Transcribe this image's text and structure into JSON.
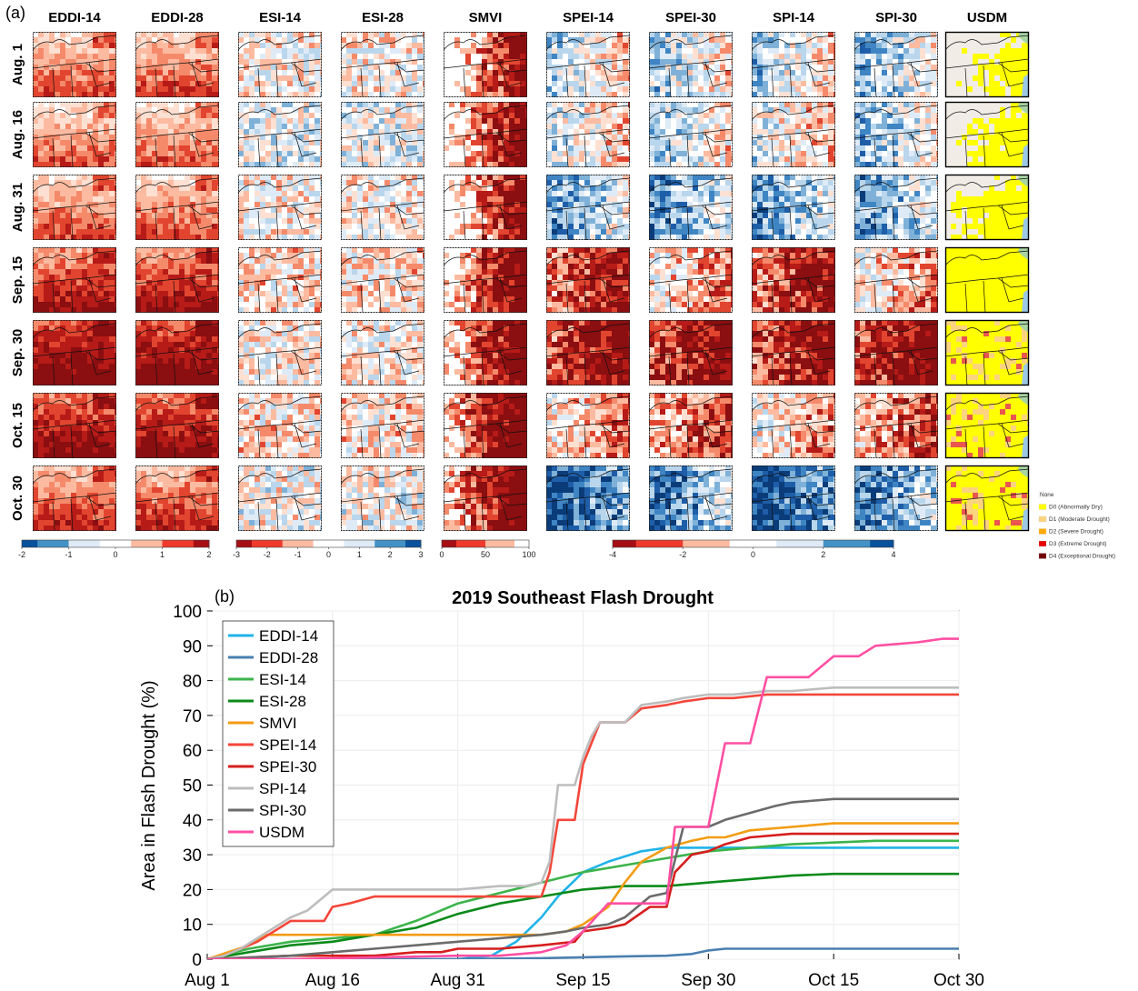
{
  "panel_a": {
    "tag": "(a)",
    "columns": [
      "EDDI-14",
      "EDDI-28",
      "ESI-14",
      "ESI-28",
      "SMVI",
      "SPEI-14",
      "SPEI-30",
      "SPI-14",
      "SPI-30",
      "USDM"
    ],
    "rows": [
      "Aug. 1",
      "Aug. 16",
      "Aug. 31",
      "Sep. 15",
      "Sep. 30",
      "Oct. 15",
      "Oct. 30"
    ],
    "colorbars": [
      {
        "name": "eddi",
        "ticks": [
          "-2",
          "-1",
          "0",
          "1",
          "2"
        ],
        "range": [
          -2,
          2
        ],
        "colors": [
          "#08519c",
          "#4292c6",
          "#deebf7",
          "#ffffff",
          "#fcbba1",
          "#ef3b2c",
          "#a50f15"
        ]
      },
      {
        "name": "esi",
        "ticks": [
          "-3",
          "-2",
          "-1",
          "0",
          "1",
          "2",
          "3"
        ],
        "range": [
          -3,
          3
        ],
        "colors": [
          "#a50f15",
          "#ef3b2c",
          "#fcbba1",
          "#ffffff",
          "#deebf7",
          "#4292c6",
          "#08519c"
        ]
      },
      {
        "name": "smvi",
        "ticks": [
          "0",
          "50",
          "100"
        ],
        "range": [
          0,
          100
        ],
        "colors": [
          "#a50f15",
          "#ef3b2c",
          "#fcbba1",
          "#ffffff"
        ]
      },
      {
        "name": "spei_spi",
        "ticks": [
          "-4",
          "-2",
          "0",
          "2",
          "4"
        ],
        "range": [
          -4,
          4
        ],
        "colors": [
          "#a50f15",
          "#ef3b2c",
          "#fcbba1",
          "#ffffff",
          "#deebf7",
          "#4292c6",
          "#08519c"
        ]
      }
    ],
    "usdm_legend": [
      {
        "label": "None",
        "color": "#ffffff"
      },
      {
        "label": "D0 (Abnormally Dry)",
        "color": "#ffff00"
      },
      {
        "label": "D1 (Moderate Drought)",
        "color": "#fcd37f"
      },
      {
        "label": "D2 (Severe Drought)",
        "color": "#ffaa00"
      },
      {
        "label": "D3 (Extreme Drought)",
        "color": "#e60000"
      },
      {
        "label": "D4 (Exceptional Drought)",
        "color": "#730000"
      }
    ]
  },
  "panel_b": {
    "tag": "(b)"
  },
  "chart_data": {
    "type": "line",
    "title": "2019 Southeast Flash Drought",
    "xlabel": "",
    "ylabel": "Area in Flash Drought (%)",
    "x_ticks": [
      "Aug 1",
      "Aug 16",
      "Aug 31",
      "Sep 15",
      "Sep 30",
      "Oct 15",
      "Oct 30"
    ],
    "x_tick_days": [
      0,
      15,
      30,
      45,
      60,
      75,
      90
    ],
    "xlim": [
      0,
      90
    ],
    "ylim": [
      0,
      100
    ],
    "y_ticks": [
      0,
      10,
      20,
      30,
      40,
      50,
      60,
      70,
      80,
      90,
      100
    ],
    "grid": true,
    "legend_position": "top-left",
    "series": [
      {
        "name": "EDDI-14",
        "color": "#1fb3e8",
        "x": [
          0,
          10,
          20,
          30,
          34,
          37,
          40,
          42,
          45,
          48,
          52,
          55,
          60,
          70,
          90
        ],
        "y": [
          0,
          0,
          0,
          0,
          1,
          5,
          12,
          18,
          25,
          28,
          31,
          32,
          32,
          32,
          32
        ]
      },
      {
        "name": "EDDI-28",
        "color": "#4a7fb0",
        "x": [
          0,
          30,
          40,
          50,
          55,
          58,
          60,
          62,
          65,
          70,
          80,
          90
        ],
        "y": [
          0,
          0,
          0.3,
          0.8,
          1,
          1.5,
          2.5,
          3,
          3,
          3,
          3,
          3
        ]
      },
      {
        "name": "ESI-14",
        "color": "#3cb44b",
        "x": [
          0,
          5,
          10,
          15,
          20,
          25,
          30,
          35,
          40,
          45,
          50,
          55,
          60,
          65,
          70,
          75,
          80,
          90
        ],
        "y": [
          0,
          3,
          5,
          6,
          7,
          11,
          16,
          19,
          22,
          25,
          27,
          29,
          31,
          32,
          33,
          33.5,
          34,
          34
        ]
      },
      {
        "name": "ESI-28",
        "color": "#0b8a1a",
        "x": [
          0,
          5,
          10,
          15,
          20,
          25,
          30,
          35,
          40,
          45,
          50,
          55,
          60,
          65,
          70,
          75,
          80,
          90
        ],
        "y": [
          0,
          2,
          4,
          5,
          7,
          9,
          13,
          16,
          18,
          20,
          21,
          21,
          22,
          23,
          24,
          24.5,
          24.5,
          24.5
        ]
      },
      {
        "name": "SMVI",
        "color": "#f39c12",
        "x": [
          0,
          5,
          7,
          10,
          15,
          20,
          25,
          30,
          35,
          38,
          40,
          43,
          45,
          48,
          50,
          52,
          55,
          58,
          60,
          62,
          65,
          70,
          75,
          80,
          90
        ],
        "y": [
          0,
          4,
          7,
          7,
          7,
          7,
          7,
          7,
          7,
          7,
          7,
          8,
          10,
          15,
          22,
          28,
          32,
          34,
          35,
          35,
          37,
          38,
          39,
          39,
          39
        ]
      },
      {
        "name": "SPEI-14",
        "color": "#f4463a",
        "x": [
          0,
          2,
          4,
          6,
          8,
          10,
          12,
          14,
          15,
          17,
          20,
          25,
          30,
          35,
          38,
          40,
          41,
          42,
          43,
          44,
          45,
          46,
          47,
          48,
          50,
          52,
          55,
          57,
          60,
          63,
          67,
          70,
          75,
          80,
          90
        ],
        "y": [
          0,
          1,
          3,
          5,
          8,
          11,
          11,
          11,
          15,
          16,
          18,
          18,
          18,
          18,
          18,
          18,
          25,
          40,
          40,
          40,
          56,
          62,
          68,
          68,
          68,
          72,
          73,
          74,
          75,
          75,
          76,
          76,
          76,
          76,
          76
        ]
      },
      {
        "name": "SPEI-30",
        "color": "#d61e1e",
        "x": [
          0,
          10,
          20,
          25,
          28,
          30,
          35,
          40,
          44,
          45,
          48,
          50,
          53,
          55,
          56,
          58,
          60,
          62,
          65,
          70,
          75,
          80,
          90
        ],
        "y": [
          0,
          1,
          1,
          2,
          2,
          3,
          3,
          4,
          5,
          8,
          9,
          10,
          15,
          15,
          25,
          30,
          31,
          33,
          35,
          36,
          36,
          36,
          36
        ]
      },
      {
        "name": "SPI-14",
        "color": "#bdbdbd",
        "x": [
          0,
          2,
          4,
          6,
          8,
          10,
          12,
          14,
          15,
          17,
          20,
          25,
          30,
          35,
          38,
          40,
          41,
          42,
          43,
          44,
          45,
          46,
          47,
          48,
          50,
          52,
          55,
          57,
          60,
          63,
          67,
          70,
          75,
          80,
          90
        ],
        "y": [
          0,
          1,
          3,
          6,
          9,
          12,
          14,
          18,
          20,
          20,
          20,
          20,
          20,
          21,
          21,
          22,
          28,
          50,
          50,
          50,
          58,
          64,
          68,
          68,
          68,
          73,
          74,
          75,
          76,
          76,
          77,
          77,
          78,
          78,
          78
        ]
      },
      {
        "name": "SPI-30",
        "color": "#6b6b6b",
        "x": [
          0,
          10,
          15,
          20,
          25,
          30,
          35,
          40,
          43,
          45,
          48,
          50,
          53,
          55,
          57,
          60,
          62,
          65,
          68,
          70,
          75,
          80,
          90
        ],
        "y": [
          0,
          1,
          2,
          3,
          4,
          5,
          6,
          7,
          8,
          9,
          10,
          12,
          18,
          19,
          38,
          38,
          40,
          42,
          44,
          45,
          46,
          46,
          46
        ]
      },
      {
        "name": "USDM",
        "color": "#ff4fa3",
        "x": [
          0,
          10,
          20,
          30,
          35,
          40,
          43,
          45,
          48,
          50,
          52,
          55,
          56,
          58,
          60,
          62,
          64,
          65,
          67,
          70,
          72,
          75,
          78,
          80,
          85,
          88,
          90
        ],
        "y": [
          0,
          0,
          0.5,
          1,
          1,
          2,
          4,
          8,
          16,
          16,
          16,
          16,
          38,
          38,
          38,
          62,
          62,
          62,
          81,
          81,
          81,
          87,
          87,
          90,
          91,
          92,
          92
        ]
      }
    ]
  }
}
